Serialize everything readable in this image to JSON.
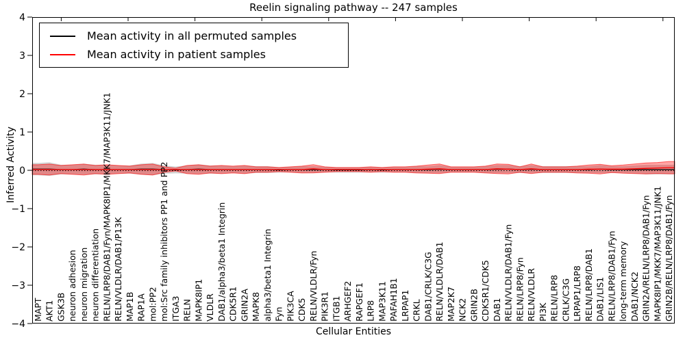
{
  "figure": {
    "title": "Reelin signaling pathway -- 247 samples",
    "xlabel": "Cellular Entities",
    "ylabel": "Inferred Activity"
  },
  "legend": {
    "items": [
      {
        "label": "Mean activity in all permuted samples",
        "color": "#000000"
      },
      {
        "label": "Mean activity in patient samples",
        "color": "#ff0000"
      }
    ]
  },
  "chart_data": {
    "type": "line",
    "title": "Reelin signaling pathway -- 247 samples",
    "xlabel": "Cellular Entities",
    "ylabel": "Inferred Activity",
    "ylim": [
      -4,
      4
    ],
    "yticks": [
      -4,
      -3,
      -2,
      -1,
      0,
      1,
      2,
      3,
      4
    ],
    "zero_line": "dotted",
    "legend_position": "upper left",
    "grid": false,
    "categories": [
      "MAPT",
      "AKT1",
      "GSK3B",
      "neuron adhesion",
      "neuron migration",
      "neuron differentiation",
      "RELN/LRP8/DAB1/Fyn/MAPK8IP1/MKK7/MAP3K11/JNK1",
      "RELN/VLDLR/DAB1/P13K",
      "MAP1B",
      "RAP1A",
      "mol:PP2",
      "mol:Src family inhibitors PP1 and PP2",
      "ITGA3",
      "RELN",
      "MAPK8IP1",
      "VLDLR",
      "DAB1/alpha3/beta1 Integrin",
      "CDK5R1",
      "GRIN2A",
      "MAPK8",
      "alpha3/beta1 Integrin",
      "Fyn",
      "PIK3CA",
      "CDK5",
      "RELN/VLDLR/Fyn",
      "PIK3R1",
      "ITGB1",
      "ARHGEF2",
      "RAPGEF1",
      "LRP8",
      "MAP3K11",
      "PAFAH1B1",
      "LRPAP1",
      "CRKL",
      "DAB1/CRLK/C3G",
      "RELN/VLDLR/DAB1",
      "MAP2K7",
      "NCK2",
      "GRIN2B",
      "CDK5R1/CDK5",
      "DAB1",
      "RELN/VLDLR/DAB1/Fyn",
      "RELN/LRP8/Fyn",
      "RELN/VLDLR",
      "PI3K",
      "RELN/LRP8",
      "CRLK/C3G",
      "LRPAP1/LRP8",
      "RELN/LRP8/DAB1",
      "DAB1/LIS1",
      "RELN/LRP8/DAB1/Fyn",
      "long-term memory",
      "DAB1/NCK2",
      "GRIN2A/RELN/LRP8/DAB1/Fyn",
      "MAPK8IP1/MKK7/MAP3K11/JNK1",
      "GRIN2B/RELN/LRP8/DAB1/Fyn"
    ],
    "series": [
      {
        "name": "Mean activity in all permuted samples",
        "color": "#000000",
        "band_color": "rgba(0,0,0,0.18)",
        "values": [
          0.03,
          0.03,
          0.02,
          0.02,
          0.03,
          0.02,
          0.02,
          0.02,
          0.02,
          0.03,
          0.03,
          0.02,
          0.01,
          0.02,
          0.03,
          0.02,
          0.02,
          0.02,
          0.02,
          0.02,
          0.02,
          0.01,
          0.02,
          0.02,
          0.02,
          0.02,
          0.01,
          0.01,
          0.01,
          0.02,
          0.01,
          0.02,
          0.02,
          0.02,
          0.02,
          0.03,
          0.02,
          0.02,
          0.02,
          0.02,
          0.03,
          0.03,
          0.02,
          0.03,
          0.02,
          0.02,
          0.02,
          0.02,
          0.02,
          0.03,
          0.02,
          0.02,
          0.02,
          0.02,
          0.02,
          0.02
        ],
        "band_halfwidth": [
          0.161,
          0.179,
          0.125,
          0.125,
          0.143,
          0.125,
          0.125,
          0.107,
          0.107,
          0.143,
          0.161,
          0.107,
          0.089,
          0.107,
          0.125,
          0.107,
          0.107,
          0.089,
          0.107,
          0.089,
          0.089,
          0.071,
          0.071,
          0.089,
          0.089,
          0.071,
          0.071,
          0.071,
          0.071,
          0.071,
          0.071,
          0.071,
          0.071,
          0.089,
          0.089,
          0.107,
          0.071,
          0.071,
          0.071,
          0.089,
          0.107,
          0.107,
          0.089,
          0.107,
          0.089,
          0.089,
          0.089,
          0.089,
          0.089,
          0.107,
          0.089,
          0.089,
          0.107,
          0.125,
          0.125,
          0.125
        ]
      },
      {
        "name": "Mean activity in patient samples",
        "color": "#ff0000",
        "band_color": "rgba(255,0,0,0.35)",
        "values": [
          0.02,
          0.02,
          0.02,
          0.02,
          0.02,
          0.02,
          0.02,
          0.02,
          0.02,
          0.02,
          0.02,
          0.02,
          0.02,
          0.02,
          0.02,
          0.02,
          0.02,
          0.02,
          0.02,
          0.02,
          0.02,
          0.02,
          0.02,
          0.02,
          0.04,
          0.02,
          0.02,
          0.02,
          0.02,
          0.02,
          0.02,
          0.02,
          0.02,
          0.02,
          0.03,
          0.04,
          0.02,
          0.02,
          0.02,
          0.02,
          0.04,
          0.03,
          0.02,
          0.04,
          0.02,
          0.02,
          0.02,
          0.02,
          0.03,
          0.03,
          0.03,
          0.03,
          0.04,
          0.05,
          0.06,
          0.07
        ],
        "band_halfwidth": [
          0.125,
          0.143,
          0.107,
          0.125,
          0.143,
          0.107,
          0.125,
          0.107,
          0.089,
          0.125,
          0.143,
          0.071,
          0.036,
          0.107,
          0.125,
          0.089,
          0.107,
          0.089,
          0.107,
          0.071,
          0.071,
          0.054,
          0.071,
          0.089,
          0.107,
          0.071,
          0.054,
          0.054,
          0.054,
          0.071,
          0.054,
          0.071,
          0.071,
          0.089,
          0.107,
          0.125,
          0.071,
          0.071,
          0.071,
          0.089,
          0.125,
          0.125,
          0.071,
          0.125,
          0.071,
          0.071,
          0.071,
          0.089,
          0.107,
          0.125,
          0.089,
          0.107,
          0.125,
          0.143,
          0.143,
          0.161
        ]
      }
    ]
  }
}
